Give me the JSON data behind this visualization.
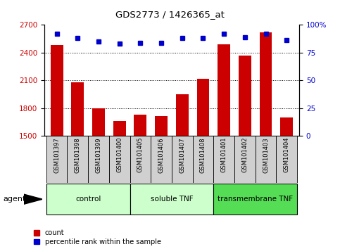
{
  "title": "GDS2773 / 1426365_at",
  "samples": [
    "GSM101397",
    "GSM101398",
    "GSM101399",
    "GSM101400",
    "GSM101405",
    "GSM101406",
    "GSM101407",
    "GSM101408",
    "GSM101401",
    "GSM101402",
    "GSM101403",
    "GSM101404"
  ],
  "counts": [
    2480,
    2080,
    1800,
    1660,
    1730,
    1710,
    1950,
    2120,
    2490,
    2370,
    2620,
    1700
  ],
  "percentiles": [
    92,
    88,
    85,
    83,
    84,
    84,
    88,
    88,
    92,
    89,
    92,
    86
  ],
  "ylim_left": [
    1500,
    2700
  ],
  "ylim_right": [
    0,
    100
  ],
  "yticks_left": [
    1500,
    1800,
    2100,
    2400,
    2700
  ],
  "yticks_right": [
    0,
    25,
    50,
    75,
    100
  ],
  "bar_color": "#cc0000",
  "dot_color": "#0000cc",
  "grid_color": "#000000",
  "groups": [
    {
      "label": "control",
      "start": 0,
      "end": 4
    },
    {
      "label": "soluble TNF",
      "start": 4,
      "end": 8
    },
    {
      "label": "transmembrane TNF",
      "start": 8,
      "end": 12
    }
  ],
  "group_colors": [
    "#ccffcc",
    "#ccffcc",
    "#55dd55"
  ],
  "agent_label": "agent",
  "legend_items": [
    "count",
    "percentile rank within the sample"
  ],
  "left_axis_color": "#cc0000",
  "right_axis_color": "#0000cc",
  "bar_width": 0.6,
  "sample_bg_color": "#d0d0d0",
  "fig_width": 4.83,
  "fig_height": 3.54,
  "dpi": 100
}
